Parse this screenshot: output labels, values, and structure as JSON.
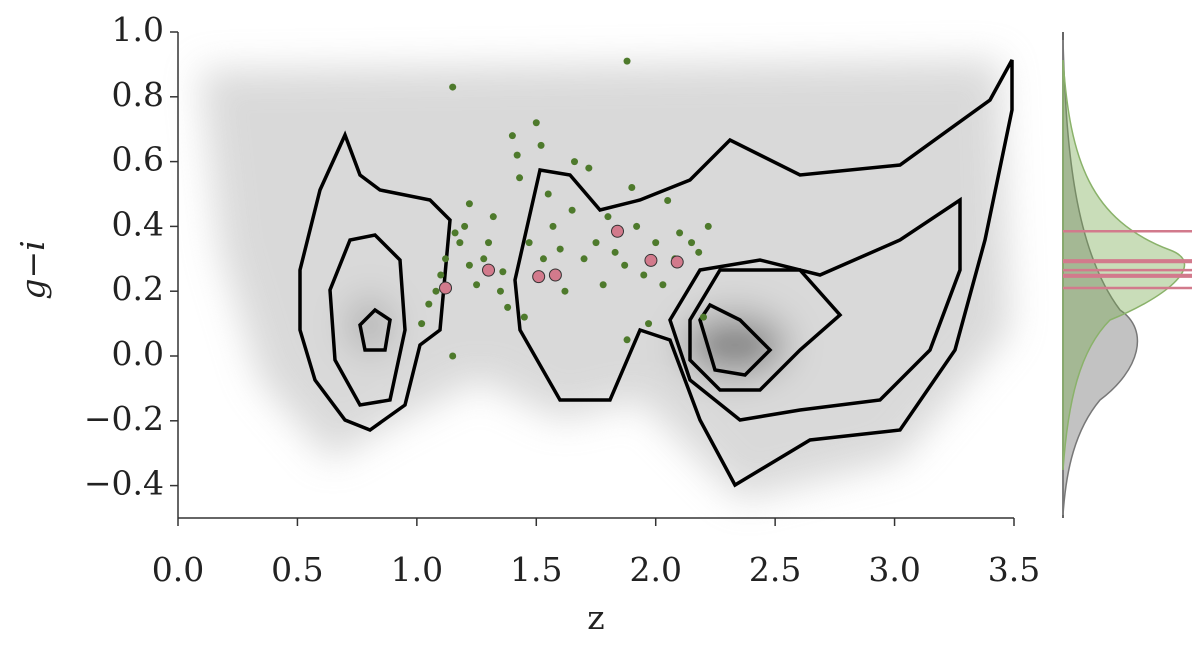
{
  "chart_data": {
    "type": "scatter",
    "x_label": "z",
    "y_label": "g−i",
    "xlim": [
      0,
      3.5
    ],
    "ylim": [
      -0.5,
      1.0
    ],
    "xticks": [
      {
        "value": 0,
        "label": "0.0"
      },
      0.5,
      {
        "value": 1,
        "label": "1.0"
      },
      1.5,
      {
        "value": 2,
        "label": "2.0"
      },
      2.5,
      {
        "value": 3,
        "label": "3.0"
      },
      3.5
    ],
    "yticks": [
      {
        "value": -0.4,
        "label": "−0.4"
      },
      {
        "value": -0.2,
        "label": "−0.2"
      },
      {
        "value": 0,
        "label": "0.0"
      },
      0.2,
      0.4,
      0.6,
      0.8,
      {
        "value": 1,
        "label": "1.0"
      }
    ],
    "series": [
      {
        "color": "#4e7a2c",
        "x": [
          1.15,
          1.88,
          1.15,
          1.02,
          1.05,
          1.08,
          1.1,
          1.12,
          1.18,
          1.2,
          1.22,
          1.25,
          1.28,
          1.3,
          1.32,
          1.35,
          1.38,
          1.4,
          1.42,
          1.43,
          1.45,
          1.47,
          1.5,
          1.52,
          1.53,
          1.55,
          1.57,
          1.6,
          1.62,
          1.65,
          1.7,
          1.72,
          1.75,
          1.78,
          1.8,
          1.83,
          1.87,
          1.9,
          1.92,
          1.95,
          1.97,
          2.0,
          2.03,
          2.05,
          2.08,
          2.1,
          2.15,
          2.18,
          2.2,
          2.22,
          1.88,
          1.22,
          1.16,
          1.36,
          1.66
        ],
        "y": [
          0.83,
          0.91,
          0.0,
          0.1,
          0.16,
          0.2,
          0.25,
          0.3,
          0.35,
          0.4,
          0.47,
          0.22,
          0.3,
          0.35,
          0.43,
          0.2,
          0.15,
          0.68,
          0.62,
          0.55,
          0.12,
          0.35,
          0.72,
          0.65,
          0.3,
          0.5,
          0.4,
          0.33,
          0.2,
          0.45,
          0.3,
          0.58,
          0.35,
          0.22,
          0.43,
          0.32,
          0.28,
          0.52,
          0.4,
          0.25,
          0.1,
          0.35,
          0.22,
          0.48,
          0.3,
          0.38,
          0.35,
          0.32,
          0.12,
          0.4,
          0.05,
          0.28,
          0.38,
          0.26,
          0.6
        ]
      },
      {
        "color": "#d27a8c",
        "x": [
          1.12,
          1.3,
          1.51,
          1.58,
          1.84,
          1.98,
          2.09
        ],
        "y": [
          0.21,
          0.265,
          0.245,
          0.25,
          0.385,
          0.295,
          0.29
        ]
      }
    ]
  }
}
